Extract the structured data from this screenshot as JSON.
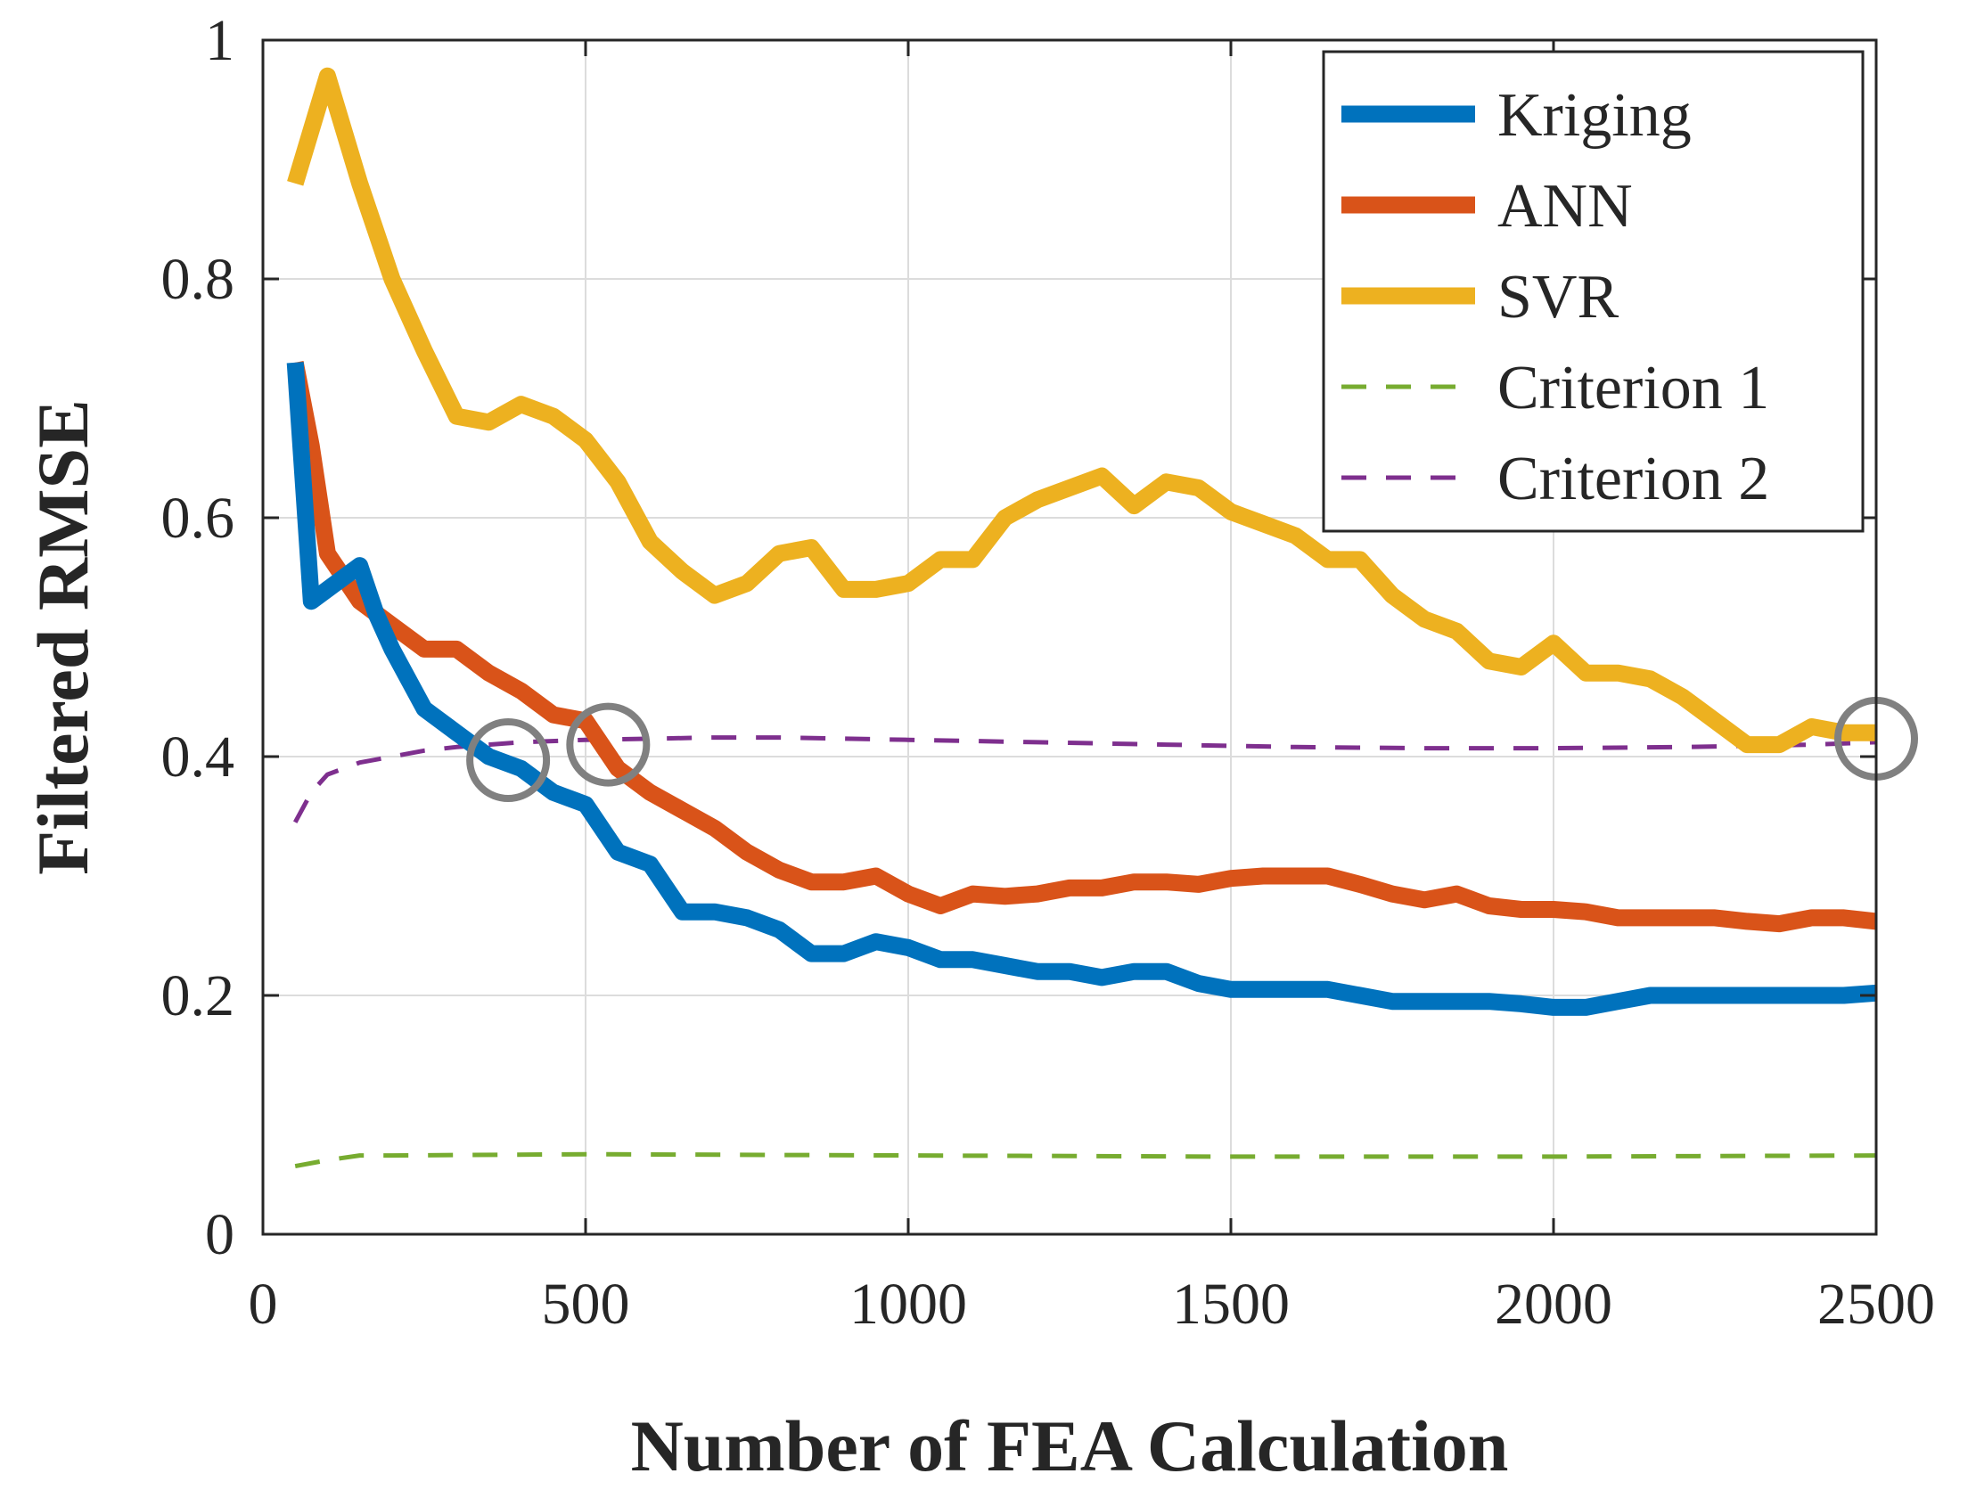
{
  "chart_data": {
    "type": "line",
    "xlabel": "Number of FEA Calculation",
    "ylabel": "Filtered RMSE",
    "xlim": [
      0,
      2500
    ],
    "ylim": [
      0,
      1
    ],
    "grid": true,
    "legend_position": "top-right",
    "x_ticks": [
      0,
      500,
      1000,
      1500,
      2000,
      2500
    ],
    "x_tick_labels": [
      "0",
      "500",
      "1000",
      "1500",
      "2000",
      "2500"
    ],
    "y_ticks": [
      0,
      0.2,
      0.4,
      0.6,
      0.8,
      1
    ],
    "y_tick_labels": [
      "0",
      "0.2",
      "0.4",
      "0.6",
      "0.8",
      "1"
    ],
    "series": [
      {
        "name": "Kriging",
        "color": "#0072BD",
        "style": "solid",
        "x": [
          50,
          75,
          100,
          125,
          150,
          175,
          200,
          250,
          300,
          350,
          400,
          450,
          500,
          550,
          600,
          650,
          700,
          750,
          800,
          850,
          900,
          950,
          1000,
          1050,
          1100,
          1150,
          1200,
          1250,
          1300,
          1350,
          1400,
          1450,
          1500,
          1550,
          1600,
          1650,
          1700,
          1750,
          1800,
          1850,
          1900,
          1950,
          2000,
          2050,
          2100,
          2150,
          2200,
          2250,
          2300,
          2350,
          2400,
          2450,
          2500
        ],
        "values": [
          0.73,
          0.53,
          0.54,
          0.55,
          0.56,
          0.52,
          0.49,
          0.44,
          0.42,
          0.4,
          0.39,
          0.37,
          0.36,
          0.32,
          0.31,
          0.27,
          0.27,
          0.265,
          0.255,
          0.235,
          0.235,
          0.245,
          0.24,
          0.23,
          0.23,
          0.225,
          0.22,
          0.22,
          0.215,
          0.22,
          0.22,
          0.21,
          0.205,
          0.205,
          0.205,
          0.205,
          0.2,
          0.195,
          0.195,
          0.195,
          0.195,
          0.193,
          0.19,
          0.19,
          0.195,
          0.2,
          0.2,
          0.2,
          0.2,
          0.2,
          0.2,
          0.2,
          0.202
        ]
      },
      {
        "name": "ANN",
        "color": "#D95319",
        "style": "solid",
        "x": [
          50,
          75,
          100,
          150,
          200,
          250,
          300,
          350,
          400,
          450,
          500,
          550,
          600,
          650,
          700,
          750,
          800,
          850,
          900,
          950,
          1000,
          1050,
          1100,
          1150,
          1200,
          1250,
          1300,
          1350,
          1400,
          1450,
          1500,
          1550,
          1600,
          1650,
          1700,
          1750,
          1800,
          1850,
          1900,
          1950,
          2000,
          2050,
          2100,
          2150,
          2200,
          2250,
          2300,
          2350,
          2400,
          2450,
          2500
        ],
        "values": [
          0.73,
          0.66,
          0.57,
          0.53,
          0.51,
          0.49,
          0.49,
          0.47,
          0.455,
          0.435,
          0.43,
          0.39,
          0.37,
          0.355,
          0.34,
          0.32,
          0.305,
          0.295,
          0.295,
          0.3,
          0.285,
          0.275,
          0.285,
          0.283,
          0.285,
          0.29,
          0.29,
          0.295,
          0.295,
          0.293,
          0.298,
          0.3,
          0.3,
          0.3,
          0.293,
          0.285,
          0.28,
          0.285,
          0.275,
          0.272,
          0.272,
          0.27,
          0.265,
          0.265,
          0.265,
          0.265,
          0.262,
          0.26,
          0.265,
          0.265,
          0.262
        ]
      },
      {
        "name": "SVR",
        "color": "#EDB120",
        "style": "solid",
        "x": [
          50,
          100,
          150,
          200,
          250,
          300,
          350,
          400,
          450,
          500,
          550,
          600,
          650,
          700,
          750,
          800,
          850,
          900,
          950,
          1000,
          1050,
          1100,
          1150,
          1200,
          1250,
          1300,
          1350,
          1400,
          1450,
          1500,
          1550,
          1600,
          1650,
          1700,
          1750,
          1800,
          1850,
          1900,
          1950,
          2000,
          2050,
          2100,
          2150,
          2200,
          2250,
          2300,
          2350,
          2400,
          2450,
          2500
        ],
        "values": [
          0.88,
          0.97,
          0.88,
          0.8,
          0.74,
          0.685,
          0.68,
          0.695,
          0.685,
          0.665,
          0.63,
          0.58,
          0.555,
          0.535,
          0.545,
          0.57,
          0.575,
          0.54,
          0.54,
          0.545,
          0.565,
          0.565,
          0.6,
          0.615,
          0.625,
          0.635,
          0.61,
          0.63,
          0.625,
          0.605,
          0.595,
          0.585,
          0.565,
          0.565,
          0.535,
          0.515,
          0.505,
          0.48,
          0.475,
          0.495,
          0.47,
          0.47,
          0.465,
          0.45,
          0.43,
          0.41,
          0.41,
          0.425,
          0.42,
          0.42
        ]
      },
      {
        "name": "Criterion 1",
        "color": "#77AC30",
        "style": "dashed",
        "x": [
          50,
          100,
          150,
          200,
          500,
          1000,
          1500,
          2000,
          2500
        ],
        "values": [
          0.057,
          0.062,
          0.066,
          0.066,
          0.067,
          0.066,
          0.065,
          0.065,
          0.066
        ]
      },
      {
        "name": "Criterion 2",
        "color": "#7E2F8E",
        "style": "dashed",
        "x": [
          50,
          75,
          100,
          150,
          200,
          250,
          300,
          400,
          500,
          600,
          700,
          800,
          900,
          1000,
          1200,
          1400,
          1600,
          1800,
          2000,
          2200,
          2400,
          2500
        ],
        "values": [
          0.345,
          0.37,
          0.385,
          0.395,
          0.4,
          0.405,
          0.408,
          0.412,
          0.414,
          0.415,
          0.416,
          0.416,
          0.415,
          0.414,
          0.412,
          0.41,
          0.408,
          0.407,
          0.407,
          0.408,
          0.41,
          0.412
        ]
      }
    ],
    "annotations": [
      {
        "type": "circle-marker",
        "x": 380,
        "y": 0.397
      },
      {
        "type": "circle-marker",
        "x": 535,
        "y": 0.41
      },
      {
        "type": "circle-marker",
        "x": 2500,
        "y": 0.415
      }
    ]
  }
}
